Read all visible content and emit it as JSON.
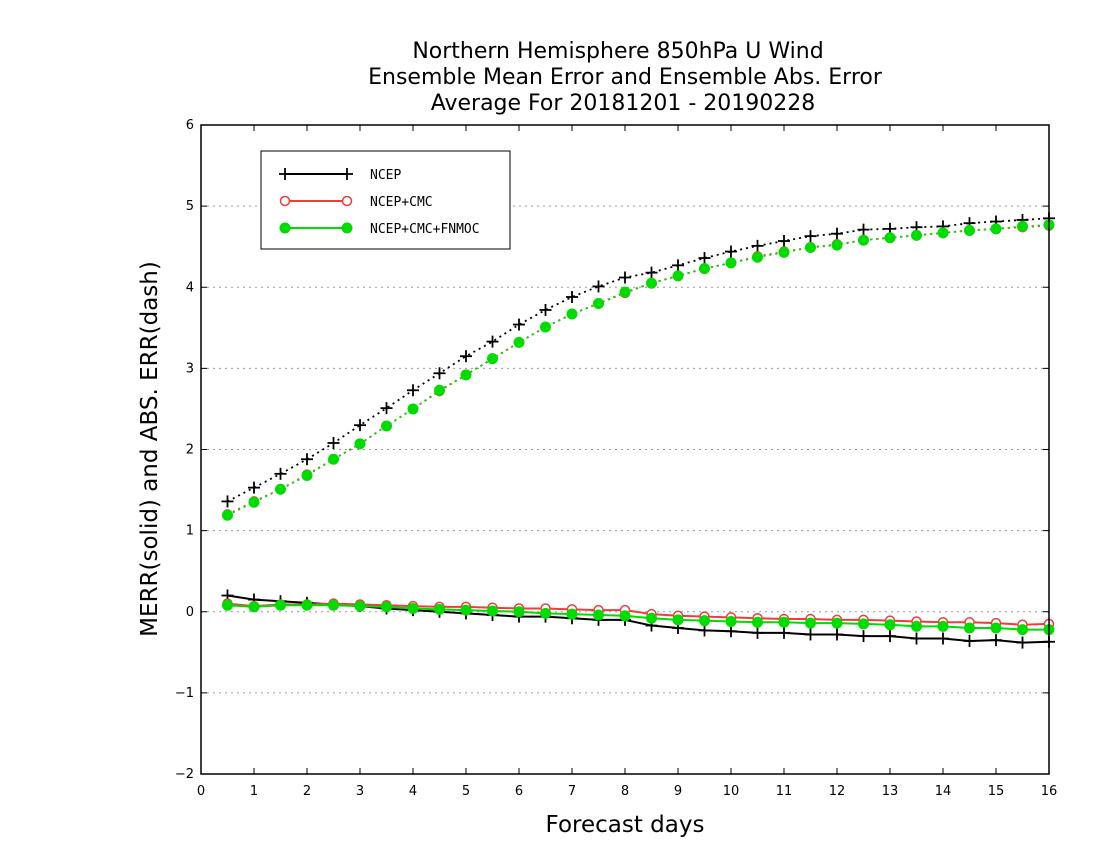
{
  "chart_data": {
    "type": "line",
    "title_lines": [
      "Northern Hemisphere 850hPa U Wind",
      "Ensemble Mean Error and Ensemble Abs. Error",
      "Average For 20181201 - 20190228"
    ],
    "xlabel": "Forecast days",
    "ylabel": "MERR(solid) and ABS. ERR(dash)",
    "xlim": [
      0,
      16
    ],
    "ylim": [
      -2,
      6
    ],
    "x_ticks": [
      "0",
      "1",
      "2",
      "3",
      "4",
      "5",
      "6",
      "7",
      "8",
      "9",
      "10",
      "11",
      "12",
      "13",
      "14",
      "15",
      "16"
    ],
    "y_ticks": [
      "−2",
      "−1",
      "0",
      "1",
      "2",
      "3",
      "4",
      "5",
      "6"
    ],
    "grid": "horizontal dotted",
    "legend_position": "top-left",
    "x": [
      0.5,
      1,
      1.5,
      2,
      2.5,
      3,
      3.5,
      4,
      4.5,
      5,
      5.5,
      6,
      6.5,
      7,
      7.5,
      8,
      8.5,
      9,
      9.5,
      10,
      10.5,
      11,
      11.5,
      12,
      12.5,
      13,
      13.5,
      14,
      14.5,
      15,
      15.5,
      16
    ],
    "series": [
      {
        "name": "NCEP",
        "color": "#000000",
        "marker": "plus",
        "merr": [
          0.2,
          0.15,
          0.13,
          0.11,
          0.09,
          0.07,
          0.04,
          0.02,
          0.0,
          -0.02,
          -0.04,
          -0.06,
          -0.06,
          -0.08,
          -0.1,
          -0.1,
          -0.17,
          -0.2,
          -0.23,
          -0.24,
          -0.26,
          -0.26,
          -0.28,
          -0.28,
          -0.3,
          -0.3,
          -0.33,
          -0.33,
          -0.36,
          -0.35,
          -0.38,
          -0.37
        ],
        "abs_err": [
          1.36,
          1.53,
          1.7,
          1.88,
          2.08,
          2.3,
          2.51,
          2.73,
          2.94,
          3.15,
          3.33,
          3.54,
          3.72,
          3.88,
          4.01,
          4.12,
          4.18,
          4.27,
          4.36,
          4.44,
          4.51,
          4.57,
          4.63,
          4.66,
          4.71,
          4.72,
          4.74,
          4.75,
          4.79,
          4.81,
          4.83,
          4.85
        ]
      },
      {
        "name": "NCEP+CMC",
        "color": "#f03c3c",
        "marker": "open-circle",
        "merr": [
          0.1,
          0.07,
          0.09,
          0.09,
          0.1,
          0.09,
          0.08,
          0.07,
          0.06,
          0.06,
          0.05,
          0.04,
          0.04,
          0.03,
          0.02,
          0.02,
          -0.03,
          -0.05,
          -0.06,
          -0.07,
          -0.08,
          -0.09,
          -0.09,
          -0.1,
          -0.1,
          -0.11,
          -0.12,
          -0.13,
          -0.13,
          -0.14,
          -0.16,
          -0.15
        ],
        "abs_err": [
          1.2,
          1.36,
          1.51,
          1.69,
          1.88,
          2.07,
          2.29,
          2.5,
          2.72,
          2.92,
          3.12,
          3.32,
          3.51,
          3.67,
          3.8,
          3.93,
          4.05,
          4.14,
          4.23,
          4.3,
          4.38,
          4.44,
          4.49,
          4.53,
          4.58,
          4.61,
          4.64,
          4.67,
          4.7,
          4.72,
          4.74,
          4.76
        ]
      },
      {
        "name": "NCEP+CMC+FNMOC",
        "color": "#00dc00",
        "marker": "filled-circle",
        "merr": [
          0.08,
          0.06,
          0.08,
          0.08,
          0.08,
          0.07,
          0.06,
          0.04,
          0.03,
          0.02,
          0.01,
          0.0,
          -0.02,
          -0.03,
          -0.04,
          -0.05,
          -0.08,
          -0.1,
          -0.11,
          -0.12,
          -0.13,
          -0.13,
          -0.14,
          -0.14,
          -0.15,
          -0.16,
          -0.18,
          -0.18,
          -0.2,
          -0.2,
          -0.22,
          -0.22
        ],
        "abs_err": [
          1.19,
          1.35,
          1.51,
          1.68,
          1.88,
          2.07,
          2.29,
          2.5,
          2.73,
          2.92,
          3.12,
          3.32,
          3.51,
          3.67,
          3.8,
          3.94,
          4.05,
          4.14,
          4.23,
          4.3,
          4.37,
          4.43,
          4.49,
          4.52,
          4.58,
          4.61,
          4.64,
          4.67,
          4.7,
          4.72,
          4.75,
          4.77
        ]
      }
    ]
  }
}
